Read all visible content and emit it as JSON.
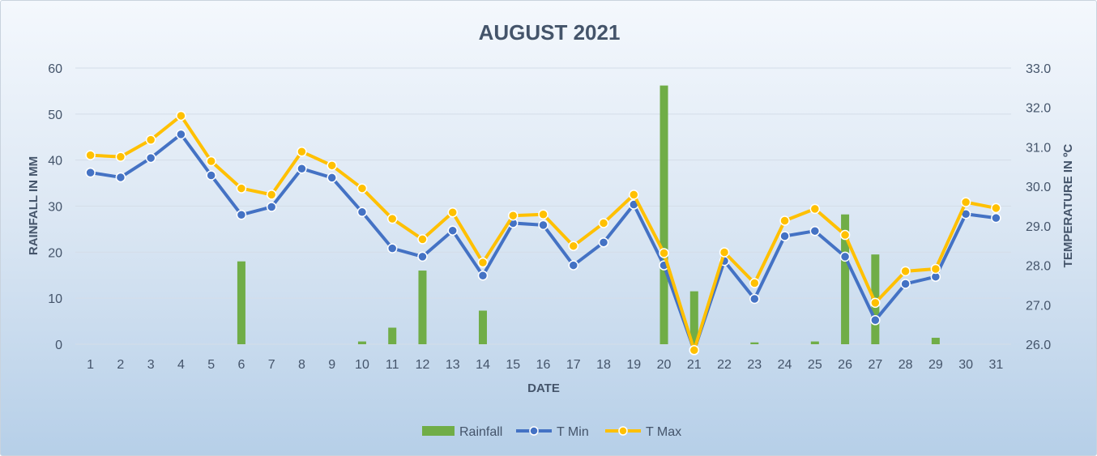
{
  "chart_data": {
    "type": "bar",
    "title": "AUGUST 2021",
    "xlabel": "DATE",
    "ylabel_left": "RAINFALL IN MM",
    "ylabel_right": "TEMPERATURE IN ºC",
    "categories": [
      "1",
      "2",
      "3",
      "4",
      "5",
      "6",
      "7",
      "8",
      "9",
      "10",
      "11",
      "12",
      "13",
      "14",
      "15",
      "16",
      "17",
      "18",
      "19",
      "20",
      "21",
      "22",
      "23",
      "24",
      "25",
      "26",
      "27",
      "28",
      "29",
      "30",
      "31"
    ],
    "ylim_left": [
      0,
      60
    ],
    "ylim_right": [
      26.0,
      33.0
    ],
    "yticks_left": [
      "0",
      "10",
      "20",
      "30",
      "40",
      "50",
      "60"
    ],
    "yticks_right": [
      "26.0",
      "27.0",
      "28.0",
      "29.0",
      "30.0",
      "31.0",
      "32.0",
      "33.0"
    ],
    "grid": true,
    "legend_position": "bottom",
    "series": [
      {
        "name": "Rainfall",
        "type": "bar",
        "axis": "left",
        "color": "#70ad47",
        "values": [
          0,
          0,
          0,
          0,
          0,
          18.0,
          0,
          0,
          0,
          0.6,
          3.6,
          16.0,
          0,
          7.3,
          0,
          0,
          0,
          0,
          0,
          56.2,
          11.5,
          0,
          0.4,
          0,
          0.6,
          28.2,
          19.5,
          0,
          1.4,
          0,
          0
        ]
      },
      {
        "name": "T Min",
        "type": "line",
        "axis": "right",
        "color": "#4472c4",
        "values": [
          30.35,
          30.23,
          30.72,
          31.32,
          30.28,
          29.28,
          29.48,
          30.45,
          30.22,
          29.35,
          28.43,
          28.22,
          28.88,
          27.74,
          29.07,
          29.02,
          28.0,
          28.58,
          29.54,
          28.0,
          25.85,
          28.11,
          27.15,
          28.74,
          28.87,
          28.22,
          26.61,
          27.53,
          27.71,
          29.3,
          29.2
        ]
      },
      {
        "name": "T Max",
        "type": "line",
        "axis": "right",
        "color": "#ffc000",
        "values": [
          30.79,
          30.75,
          31.18,
          31.79,
          30.64,
          29.95,
          29.79,
          30.88,
          30.53,
          29.95,
          29.18,
          28.66,
          29.34,
          28.07,
          29.26,
          29.29,
          28.49,
          29.07,
          29.79,
          28.31,
          25.85,
          28.33,
          27.55,
          29.13,
          29.43,
          28.77,
          27.05,
          27.85,
          27.91,
          29.6,
          29.45
        ]
      }
    ]
  }
}
